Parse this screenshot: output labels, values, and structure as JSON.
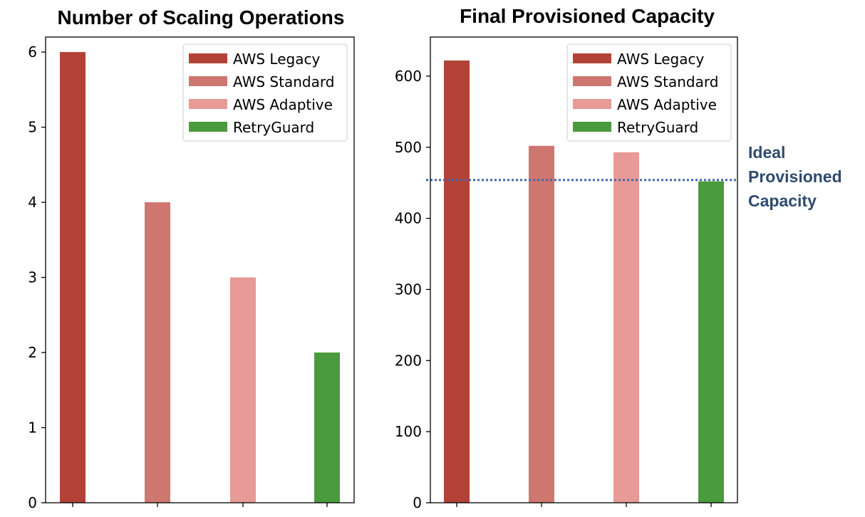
{
  "chart_data": [
    {
      "type": "bar",
      "title": "Number of Scaling Operations",
      "xlabel": "",
      "ylabel": "",
      "ylim": [
        0,
        6.2
      ],
      "yticks": [
        0,
        1,
        2,
        3,
        4,
        5,
        6
      ],
      "legend_position": "top-right",
      "series": [
        {
          "name": "AWS Legacy",
          "value": 6,
          "color": "#b24236"
        },
        {
          "name": "AWS Standard",
          "value": 4,
          "color": "#cd7770"
        },
        {
          "name": "AWS Adaptive",
          "value": 3,
          "color": "#e89a96"
        },
        {
          "name": "RetryGuard",
          "value": 2,
          "color": "#4a9a3e"
        }
      ]
    },
    {
      "type": "bar",
      "title": "Final Provisioned Capacity",
      "xlabel": "",
      "ylabel": "",
      "ylim": [
        0,
        655
      ],
      "yticks": [
        0,
        100,
        200,
        300,
        400,
        500,
        600
      ],
      "legend_position": "top-right",
      "series": [
        {
          "name": "AWS Legacy",
          "value": 622,
          "color": "#b24236"
        },
        {
          "name": "AWS Standard",
          "value": 502,
          "color": "#cd7770"
        },
        {
          "name": "AWS Adaptive",
          "value": 493,
          "color": "#e89a96"
        },
        {
          "name": "RetryGuard",
          "value": 452,
          "color": "#4a9a3e"
        }
      ],
      "reference_line": {
        "value": 454,
        "style": "dotted",
        "color": "#4466aa",
        "label_lines": [
          "Ideal",
          "Provisioned",
          "Capacity"
        ],
        "label_color": "#2e4a6e"
      }
    }
  ]
}
